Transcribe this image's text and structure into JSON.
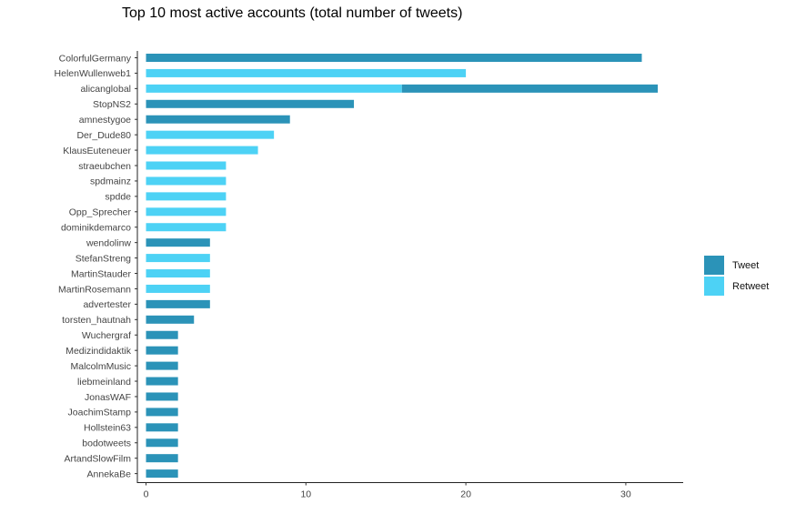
{
  "chart_data": {
    "type": "bar",
    "orientation": "horizontal",
    "stacked": true,
    "title": "Top 10 most active accounts (total number of tweets)",
    "xlabel": "",
    "ylabel": "",
    "xlim": [
      0,
      33
    ],
    "xticks": [
      0,
      10,
      20,
      30
    ],
    "grid": false,
    "legend_position": "right",
    "colors": {
      "Tweet": "#2b93b8",
      "Retweet": "#4dd2f5"
    },
    "categories": [
      "ColorfulGermany",
      "HelenWullenweb1",
      "alicanglobal",
      "StopNS2",
      "amnestygoe",
      "Der_Dude80",
      "KlausEuteneuer",
      "straeubchen",
      "spdmainz",
      "spdde",
      "Opp_Sprecher",
      "dominikdemarco",
      "wendolinw",
      "StefanStreng",
      "MartinStauder",
      "MartinRosemann",
      "advertester",
      "torsten_hautnah",
      "Wuchergraf",
      "Medizindidaktik",
      "MalcolmMusic",
      "liebmeinland",
      "JonasWAF",
      "JoachimStamp",
      "Hollstein63",
      "bodotweets",
      "ArtandSlowFilm",
      "AnnekaBe"
    ],
    "series": [
      {
        "name": "Retweet",
        "values": [
          0,
          20,
          16,
          0,
          0,
          8,
          7,
          5,
          5,
          5,
          5,
          5,
          0,
          4,
          4,
          4,
          0,
          0,
          0,
          0,
          0,
          0,
          0,
          0,
          0,
          0,
          0,
          0
        ]
      },
      {
        "name": "Tweet",
        "values": [
          31,
          0,
          16,
          13,
          9,
          0,
          0,
          0,
          0,
          0,
          0,
          0,
          4,
          0,
          0,
          0,
          4,
          3,
          2,
          2,
          2,
          2,
          2,
          2,
          2,
          2,
          2,
          2
        ]
      }
    ]
  }
}
